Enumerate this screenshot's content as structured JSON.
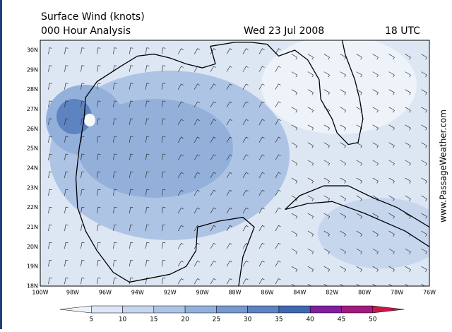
{
  "header": {
    "title": "Surface Wind (knots)",
    "analysis": "000 Hour Analysis",
    "date": "Wed 23 Jul 2008",
    "time": "18 UTC"
  },
  "map": {
    "lat_labels": [
      "30N",
      "29N",
      "28N",
      "27N",
      "26N",
      "25N",
      "24N",
      "23N",
      "22N",
      "21N",
      "20N",
      "19N",
      "18N"
    ],
    "lon_labels": [
      "100W",
      "98W",
      "96W",
      "94W",
      "92W",
      "90W",
      "88W",
      "86W",
      "84W",
      "82W",
      "80W",
      "78W",
      "76W"
    ]
  },
  "watermark": "www.PassageWeather.com",
  "colorbar": {
    "levels": [
      5,
      10,
      15,
      20,
      25,
      30,
      35,
      40,
      45,
      50
    ],
    "colors": [
      "#eef3fa",
      "#dce6f4",
      "#c6d6ed",
      "#aec4e5",
      "#93b0da",
      "#7899ce",
      "#5e83c1",
      "#4068b0",
      "#7d1f9f",
      "#a11b7c",
      "#c8174a"
    ]
  }
}
